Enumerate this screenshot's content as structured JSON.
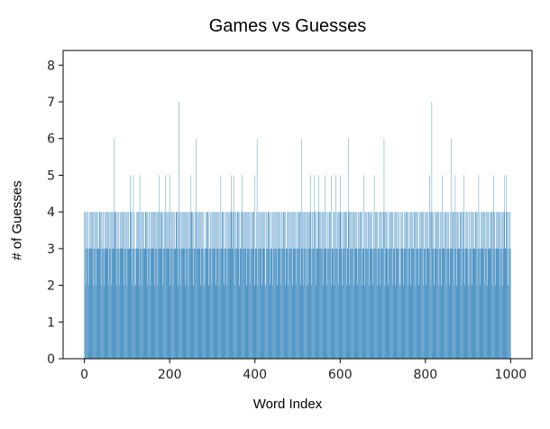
{
  "chart_data": {
    "type": "bar",
    "title": "Games vs Guesses",
    "xlabel": "Word Index",
    "ylabel": "# of Guesses",
    "xlim": [
      -50,
      1050
    ],
    "ylim": [
      0,
      8.4
    ],
    "xticks": [
      0,
      200,
      400,
      600,
      800,
      1000
    ],
    "yticks": [
      0,
      1,
      2,
      3,
      4,
      5,
      6,
      7,
      8
    ],
    "grid": false,
    "bar_color": "#1f77b4",
    "baseline_pattern": [
      4,
      3,
      4,
      2,
      4,
      3,
      3,
      4,
      3,
      4,
      2,
      3,
      4,
      3,
      4,
      3,
      3,
      4
    ],
    "special_values": [
      {
        "x": 70,
        "y": 6
      },
      {
        "x": 108,
        "y": 5
      },
      {
        "x": 115,
        "y": 5
      },
      {
        "x": 120,
        "y": 2
      },
      {
        "x": 130,
        "y": 5
      },
      {
        "x": 175,
        "y": 5
      },
      {
        "x": 190,
        "y": 5
      },
      {
        "x": 200,
        "y": 5
      },
      {
        "x": 222,
        "y": 7
      },
      {
        "x": 250,
        "y": 5
      },
      {
        "x": 262,
        "y": 6
      },
      {
        "x": 282,
        "y": 2
      },
      {
        "x": 320,
        "y": 5
      },
      {
        "x": 345,
        "y": 5
      },
      {
        "x": 350,
        "y": 5
      },
      {
        "x": 370,
        "y": 5
      },
      {
        "x": 400,
        "y": 5
      },
      {
        "x": 405,
        "y": 6
      },
      {
        "x": 425,
        "y": 2
      },
      {
        "x": 510,
        "y": 6
      },
      {
        "x": 520,
        "y": 2
      },
      {
        "x": 530,
        "y": 5
      },
      {
        "x": 540,
        "y": 5
      },
      {
        "x": 550,
        "y": 5
      },
      {
        "x": 565,
        "y": 5
      },
      {
        "x": 580,
        "y": 5
      },
      {
        "x": 590,
        "y": 5
      },
      {
        "x": 600,
        "y": 5
      },
      {
        "x": 620,
        "y": 6
      },
      {
        "x": 655,
        "y": 5
      },
      {
        "x": 680,
        "y": 5
      },
      {
        "x": 703,
        "y": 6
      },
      {
        "x": 740,
        "y": 2
      },
      {
        "x": 810,
        "y": 5
      },
      {
        "x": 815,
        "y": 7
      },
      {
        "x": 840,
        "y": 5
      },
      {
        "x": 860,
        "y": 6
      },
      {
        "x": 870,
        "y": 5
      },
      {
        "x": 890,
        "y": 5
      },
      {
        "x": 900,
        "y": 2
      },
      {
        "x": 925,
        "y": 5
      },
      {
        "x": 960,
        "y": 5
      },
      {
        "x": 985,
        "y": 5
      },
      {
        "x": 990,
        "y": 5
      },
      {
        "x": 995,
        "y": 2
      },
      {
        "x": 1000,
        "y": 3
      }
    ]
  }
}
